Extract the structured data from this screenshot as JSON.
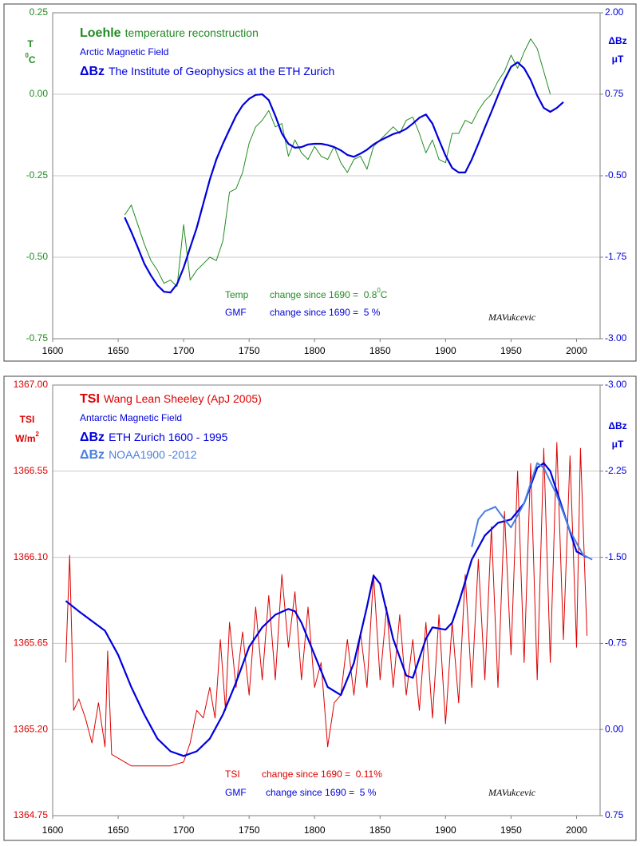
{
  "chart_data": [
    {
      "type": "line",
      "xlim": [
        1600,
        2018
      ],
      "xticks": [
        1600,
        1650,
        1700,
        1750,
        1800,
        1850,
        1900,
        1950,
        2000
      ],
      "ylim": [
        -0.75,
        0.25
      ],
      "yticks": [
        0.25,
        {
          "value": 0,
          "label": "0.00"
        },
        -0.25,
        {
          "value": -0.5,
          "label": "-0.50"
        },
        -0.75
      ],
      "y2lim": [
        -3,
        2
      ],
      "y2ticks": [
        {
          "value": 2,
          "label": "2.00"
        },
        0.75,
        {
          "value": -0.5,
          "label": "-0.50"
        },
        -1.75,
        {
          "value": -3,
          "label": "-3.00"
        }
      ],
      "grid": true,
      "ylabel": [
        [
          {
            "text": "T"
          }
        ],
        [
          {
            "text": "0",
            "sup": true
          },
          {
            "text": "C"
          }
        ]
      ],
      "y2label": [
        [
          {
            "text": "ΔBz"
          }
        ],
        [
          {
            "text": "μT"
          }
        ]
      ],
      "legend_heading": "Arctic Magnetic Field",
      "series": [
        {
          "name": "Loehle",
          "description": "temperature reconstruction",
          "color": "#228b22",
          "width": 1,
          "x": [
            1655,
            1660,
            1665,
            1670,
            1675,
            1680,
            1685,
            1690,
            1695,
            1700,
            1705,
            1710,
            1715,
            1720,
            1725,
            1730,
            1735,
            1740,
            1745,
            1750,
            1755,
            1760,
            1765,
            1770,
            1775,
            1780,
            1785,
            1790,
            1795,
            1800,
            1805,
            1810,
            1815,
            1820,
            1825,
            1830,
            1835,
            1840,
            1845,
            1850,
            1855,
            1860,
            1865,
            1870,
            1875,
            1880,
            1885,
            1890,
            1895,
            1900,
            1905,
            1910,
            1915,
            1920,
            1925,
            1930,
            1935,
            1940,
            1945,
            1950,
            1955,
            1960,
            1965,
            1970,
            1975,
            1980
          ],
          "values": [
            -0.37,
            -0.34,
            -0.4,
            -0.46,
            -0.51,
            -0.54,
            -0.58,
            -0.57,
            -0.59,
            -0.4,
            -0.57,
            -0.54,
            -0.52,
            -0.5,
            -0.51,
            -0.45,
            -0.3,
            -0.29,
            -0.24,
            -0.15,
            -0.1,
            -0.08,
            -0.05,
            -0.1,
            -0.09,
            -0.19,
            -0.14,
            -0.18,
            -0.2,
            -0.16,
            -0.19,
            -0.2,
            -0.16,
            -0.21,
            -0.24,
            -0.2,
            -0.19,
            -0.23,
            -0.16,
            -0.14,
            -0.12,
            -0.1,
            -0.12,
            -0.08,
            -0.07,
            -0.12,
            -0.18,
            -0.14,
            -0.2,
            -0.21,
            -0.12,
            -0.12,
            -0.08,
            -0.09,
            -0.05,
            -0.02,
            0.0,
            0.04,
            0.07,
            0.12,
            0.08,
            0.13,
            0.17,
            0.14,
            0.07,
            0.0
          ]
        },
        {
          "name": "ΔBz",
          "description": "The Institute of Geophysics at the ETH Zurich",
          "color": "#0000dd",
          "width": 2.2,
          "axis": "y2",
          "x": [
            1655,
            1660,
            1665,
            1670,
            1675,
            1680,
            1685,
            1690,
            1695,
            1700,
            1705,
            1710,
            1715,
            1720,
            1725,
            1730,
            1735,
            1740,
            1745,
            1750,
            1755,
            1760,
            1765,
            1770,
            1775,
            1780,
            1785,
            1790,
            1795,
            1800,
            1805,
            1810,
            1815,
            1820,
            1825,
            1830,
            1835,
            1840,
            1845,
            1850,
            1855,
            1860,
            1865,
            1870,
            1875,
            1880,
            1885,
            1890,
            1895,
            1900,
            1905,
            1910,
            1915,
            1920,
            1925,
            1930,
            1935,
            1940,
            1945,
            1950,
            1955,
            1960,
            1965,
            1970,
            1975,
            1980,
            1985,
            1990
          ],
          "values": [
            -1.14,
            -1.36,
            -1.6,
            -1.85,
            -2.03,
            -2.18,
            -2.28,
            -2.29,
            -2.16,
            -1.91,
            -1.6,
            -1.3,
            -0.93,
            -0.56,
            -0.25,
            -0.01,
            0.21,
            0.42,
            0.58,
            0.68,
            0.74,
            0.75,
            0.66,
            0.42,
            0.15,
            -0.01,
            -0.07,
            -0.06,
            -0.02,
            -0.01,
            -0.01,
            -0.03,
            -0.06,
            -0.11,
            -0.18,
            -0.21,
            -0.16,
            -0.1,
            -0.02,
            0.04,
            0.09,
            0.14,
            0.17,
            0.22,
            0.3,
            0.39,
            0.44,
            0.3,
            0.05,
            -0.19,
            -0.38,
            -0.45,
            -0.45,
            -0.25,
            -0.01,
            0.24,
            0.48,
            0.73,
            0.97,
            1.17,
            1.24,
            1.15,
            0.97,
            0.73,
            0.54,
            0.48,
            0.54,
            0.63
          ]
        }
      ],
      "annotations": [
        {
          "color": "#228b22",
          "parts": [
            {
              "text": "Temp"
            },
            {
              "text": "change since 1690 =  0.8"
            },
            {
              "text": "0",
              "sup": true
            },
            {
              "text": "C"
            }
          ]
        },
        {
          "color": "#0000dd",
          "parts": [
            {
              "text": "GMF"
            },
            {
              "text": "change since 1690 =  5 %"
            }
          ]
        }
      ],
      "signature": "MAVukcevic"
    },
    {
      "type": "line",
      "xlim": [
        1600,
        2018
      ],
      "xticks": [
        1600,
        1650,
        1700,
        1750,
        1800,
        1850,
        1900,
        1950,
        2000
      ],
      "ylim": [
        1364.75,
        1367
      ],
      "yticks": [
        {
          "value": 1367,
          "label": "1367.00"
        },
        1366.55,
        {
          "value": 1366.1,
          "label": "1366.10"
        },
        1365.65,
        {
          "value": 1365.2,
          "label": "1365.20"
        },
        1364.75
      ],
      "y2lim": [
        0.75,
        -3
      ],
      "y2ticks": [
        {
          "value": -3,
          "label": "-3.00"
        },
        -2.25,
        {
          "value": -1.5,
          "label": "-1.50"
        },
        -0.75,
        {
          "value": 0,
          "label": "0.00"
        },
        0.75
      ],
      "grid": true,
      "ylabel": [
        [
          {
            "text": "TSI"
          }
        ],
        [
          {
            "text": "W/m"
          },
          {
            "text": "2",
            "sup": true
          }
        ]
      ],
      "y2label": [
        [
          {
            "text": "ΔBz"
          }
        ],
        [
          {
            "text": "μT"
          }
        ]
      ],
      "legend_heading": "Antarctic Magnetic Field",
      "series": [
        {
          "name": "TSI",
          "description": "Wang Lean Sheeley (ApJ 2005)",
          "color": "#dd0000",
          "width": 1,
          "x": [
            1610,
            1613,
            1616,
            1620,
            1625,
            1630,
            1635,
            1640,
            1642,
            1645,
            1650,
            1660,
            1670,
            1680,
            1690,
            1700,
            1705,
            1710,
            1715,
            1720,
            1724,
            1728,
            1732,
            1735,
            1740,
            1745,
            1750,
            1755,
            1760,
            1765,
            1770,
            1775,
            1780,
            1785,
            1790,
            1795,
            1800,
            1805,
            1810,
            1815,
            1820,
            1825,
            1830,
            1835,
            1840,
            1845,
            1850,
            1855,
            1860,
            1865,
            1870,
            1875,
            1880,
            1885,
            1890,
            1895,
            1900,
            1905,
            1910,
            1915,
            1920,
            1925,
            1930,
            1935,
            1940,
            1945,
            1950,
            1955,
            1960,
            1965,
            1970,
            1975,
            1980,
            1985,
            1990,
            1995,
            2000,
            2003,
            2008
          ],
          "values": [
            1365.55,
            1366.11,
            1365.3,
            1365.36,
            1365.26,
            1365.13,
            1365.34,
            1365.11,
            1365.61,
            1365.07,
            1365.05,
            1365.01,
            1365.01,
            1365.01,
            1365.01,
            1365.03,
            1365.13,
            1365.3,
            1365.26,
            1365.42,
            1365.26,
            1365.67,
            1365.3,
            1365.76,
            1365.42,
            1365.71,
            1365.38,
            1365.84,
            1365.46,
            1365.9,
            1365.46,
            1366.01,
            1365.63,
            1365.92,
            1365.46,
            1365.84,
            1365.42,
            1365.55,
            1365.11,
            1365.34,
            1365.38,
            1365.67,
            1365.38,
            1365.71,
            1365.42,
            1366.01,
            1365.46,
            1365.84,
            1365.42,
            1365.8,
            1365.38,
            1365.67,
            1365.3,
            1365.76,
            1365.26,
            1365.8,
            1365.23,
            1365.76,
            1365.34,
            1366.01,
            1365.42,
            1366.09,
            1365.46,
            1366.26,
            1365.42,
            1366.34,
            1365.59,
            1366.55,
            1365.55,
            1366.59,
            1365.46,
            1366.67,
            1365.55,
            1366.7,
            1365.67,
            1366.63,
            1365.63,
            1366.67,
            1365.69
          ]
        },
        {
          "name": "ΔBz",
          "description": "ETH Zurich 1600 - 1995",
          "color": "#0000dd",
          "width": 2.2,
          "axis": "y2",
          "x": [
            1610,
            1620,
            1640,
            1650,
            1660,
            1670,
            1680,
            1690,
            1700,
            1710,
            1720,
            1730,
            1740,
            1750,
            1760,
            1770,
            1780,
            1785,
            1790,
            1800,
            1810,
            1820,
            1830,
            1840,
            1845,
            1850,
            1860,
            1870,
            1875,
            1885,
            1890,
            1900,
            1905,
            1910,
            1920,
            1930,
            1940,
            1950,
            1960,
            1970,
            1975,
            1980,
            1990,
            2000,
            2008
          ],
          "values": [
            -1.12,
            -1.03,
            -0.86,
            -0.65,
            -0.37,
            -0.13,
            0.08,
            0.19,
            0.23,
            0.19,
            0.08,
            -0.13,
            -0.41,
            -0.72,
            -0.89,
            -1.0,
            -1.05,
            -1.03,
            -0.93,
            -0.65,
            -0.37,
            -0.3,
            -0.58,
            -1.07,
            -1.34,
            -1.27,
            -0.79,
            -0.47,
            -0.45,
            -0.79,
            -0.89,
            -0.87,
            -0.93,
            -1.1,
            -1.48,
            -1.69,
            -1.8,
            -1.83,
            -1.97,
            -2.28,
            -2.32,
            -2.25,
            -1.9,
            -1.55,
            -1.5
          ]
        },
        {
          "name": "ΔBz",
          "description": "NOAA1900 -2012",
          "color": "#4a7fe0",
          "width": 2,
          "axis": "y2",
          "x": [
            1920,
            1925,
            1930,
            1938,
            1945,
            1950,
            1960,
            1970,
            1975,
            1985,
            1995,
            2005,
            2012
          ],
          "values": [
            -1.59,
            -1.83,
            -1.9,
            -1.94,
            -1.83,
            -1.76,
            -1.97,
            -2.32,
            -2.28,
            -2.04,
            -1.73,
            -1.52,
            -1.48
          ]
        }
      ],
      "annotations": [
        {
          "color": "#dd0000",
          "parts": [
            {
              "text": "TSI"
            },
            {
              "text": "change since 1690 =  0.11%"
            }
          ]
        },
        {
          "color": "#0000dd",
          "parts": [
            {
              "text": "GMF"
            },
            {
              "text": "change since 1690 =  5 %"
            }
          ]
        }
      ],
      "signature": "MAVukcevic"
    }
  ]
}
